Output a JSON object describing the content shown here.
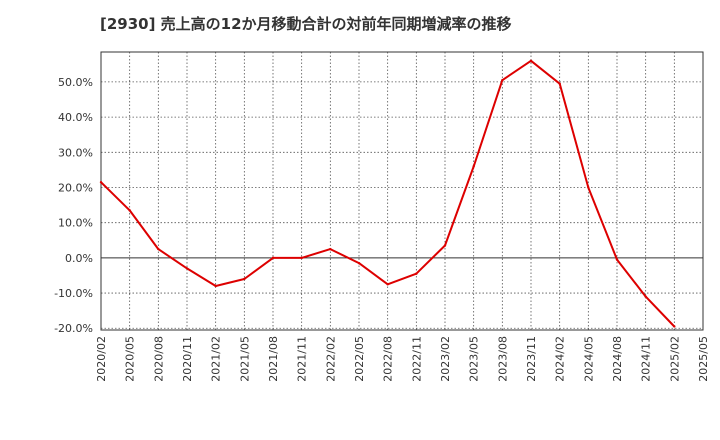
{
  "chart_data": {
    "type": "line",
    "title": "[2930]  売上高の12か月移動合計の対前年同期増減率の推移",
    "xlabel": "",
    "ylabel": "",
    "ylim": [
      -20.5,
      58.5
    ],
    "yticks": [
      -20,
      -10,
      0,
      10,
      20,
      30,
      40,
      50
    ],
    "ytick_labels": [
      "-20.0%",
      "-10.0%",
      "0.0%",
      "10.0%",
      "20.0%",
      "30.0%",
      "40.0%",
      "50.0%"
    ],
    "x": [
      "2020/02",
      "2020/05",
      "2020/08",
      "2020/11",
      "2021/02",
      "2021/05",
      "2021/08",
      "2021/11",
      "2022/02",
      "2022/05",
      "2022/08",
      "2022/11",
      "2023/02",
      "2023/05",
      "2023/08",
      "2023/11",
      "2024/02",
      "2024/05",
      "2024/08",
      "2024/11",
      "2025/02",
      "2025/05"
    ],
    "series": [
      {
        "name": "増減率",
        "color": "#dd0000",
        "values": [
          21.5,
          13.5,
          2.5,
          -3.0,
          -8.0,
          -6.0,
          0.0,
          0.0,
          2.5,
          -1.5,
          -7.5,
          -4.5,
          3.5,
          26.0,
          50.5,
          56.0,
          49.5,
          20.0,
          -0.5,
          -11.0,
          -19.5,
          null
        ]
      }
    ],
    "grid": true
  }
}
